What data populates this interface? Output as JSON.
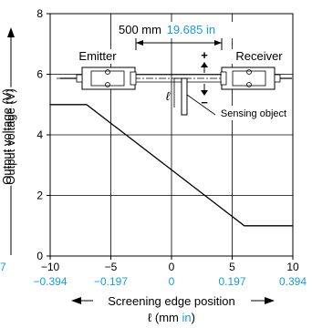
{
  "colors": {
    "line": "#000000",
    "grid": "#000000",
    "accent": "#1a9bd7"
  },
  "chart_data": {
    "type": "line",
    "x": [
      -10,
      -7,
      6,
      10
    ],
    "y": [
      5,
      5,
      1,
      1
    ],
    "xlim": [
      -10,
      10
    ],
    "ylim": [
      0,
      8
    ],
    "x_ticks": [
      "-10",
      "-5",
      "0",
      "5",
      "10"
    ],
    "x_ticks_in": [
      "-0.394",
      "-0.197",
      "0",
      "0.197",
      "0.394"
    ],
    "x_ticks_in_left_cut": "7",
    "y_ticks": [
      "0",
      "2",
      "4",
      "6",
      "8"
    ],
    "ylabel": "Output voltage (V)",
    "xlabel": "Screening edge position",
    "xlabel_unit_prefix": "ℓ (mm ",
    "xlabel_unit_in": "in",
    "xlabel_unit_suffix": ")",
    "grid": true,
    "annotations": {
      "distance_mm": "500 mm",
      "distance_in": "19.685 in",
      "emitter": "Emitter",
      "receiver": "Receiver",
      "plus": "+",
      "minus": "−",
      "ell": "ℓ",
      "sensing_object": "Sensing object"
    }
  }
}
